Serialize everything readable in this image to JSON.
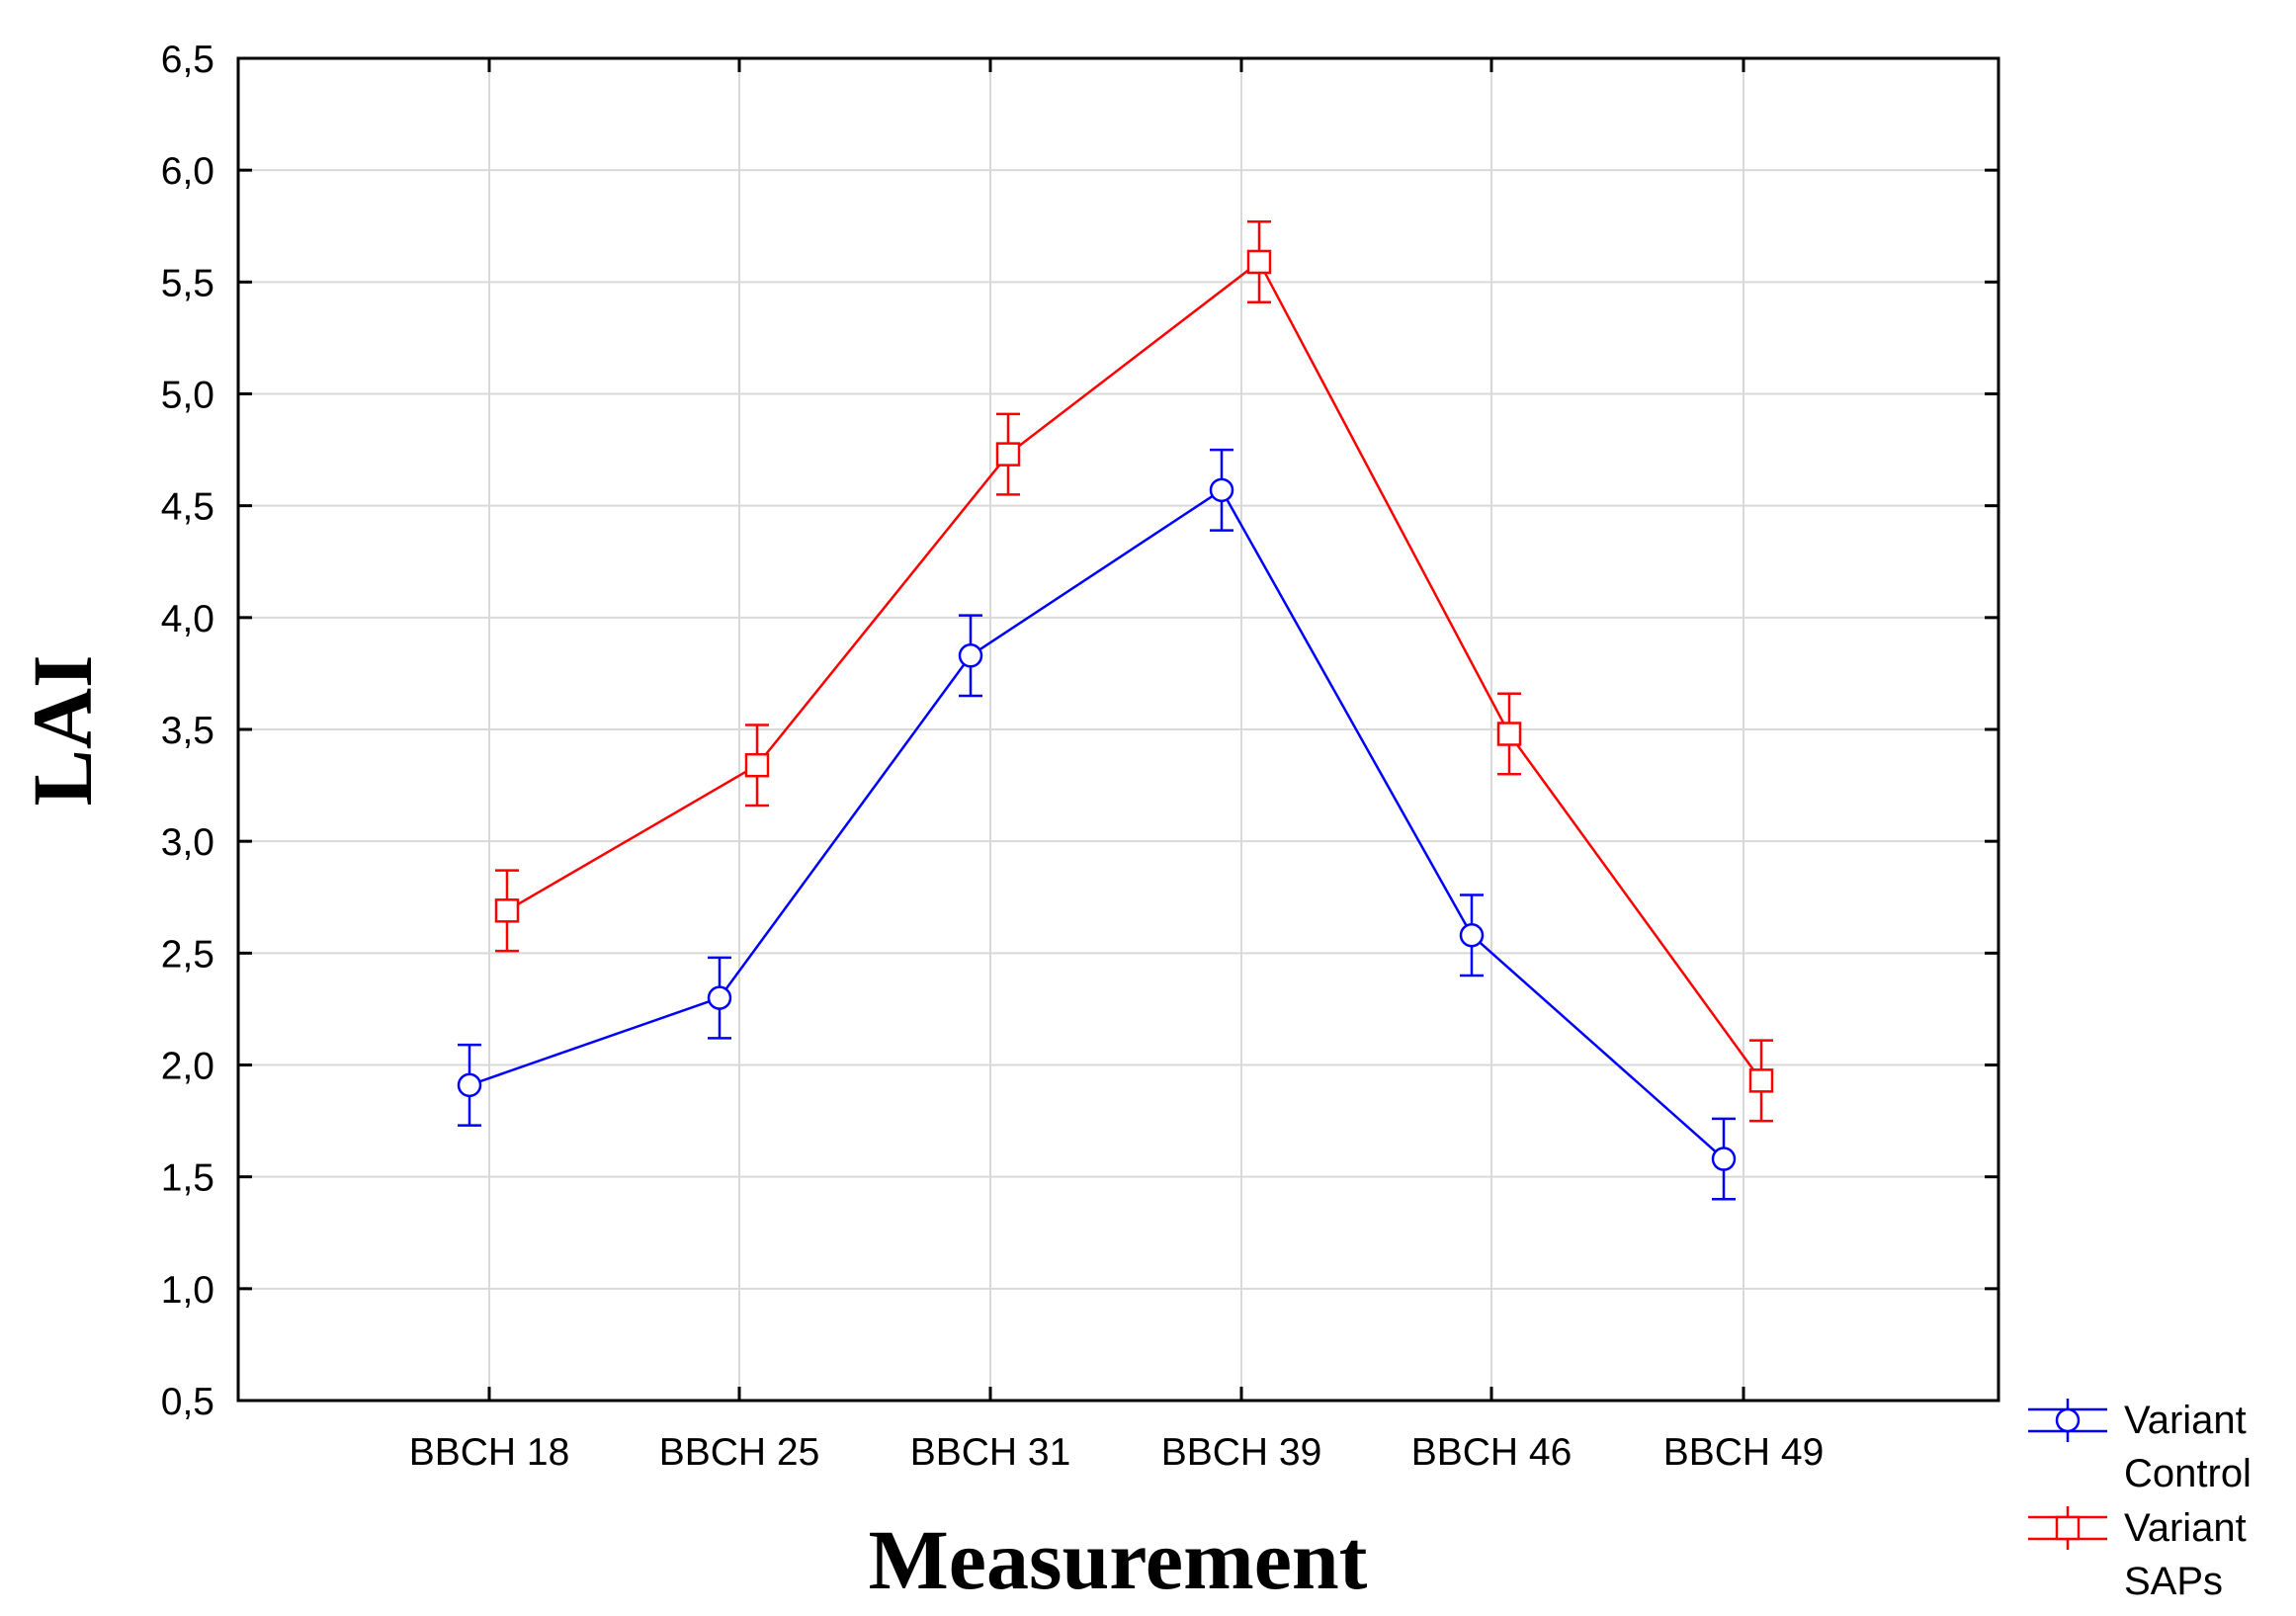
{
  "chart_data": {
    "type": "line",
    "xlabel": "Measurement",
    "ylabel": "LAI",
    "categories": [
      "BBCH 18",
      "BBCH 25",
      "BBCH 31",
      "BBCH 39",
      "BBCH 46",
      "BBCH 49"
    ],
    "ylim": [
      0.5,
      6.5
    ],
    "yticks": [
      "0,5",
      "1,0",
      "1,5",
      "2,0",
      "2,5",
      "3,0",
      "3,5",
      "4,0",
      "4,5",
      "5,0",
      "5,5",
      "6,0",
      "6,5"
    ],
    "ytick_values": [
      0.5,
      1.0,
      1.5,
      2.0,
      2.5,
      3.0,
      3.5,
      4.0,
      4.5,
      5.0,
      5.5,
      6.0,
      6.5
    ],
    "grid": true,
    "legend_position": "bottom-right, outside plot",
    "series": [
      {
        "name_lines": [
          "Variant",
          "Control"
        ],
        "color": "#0000ff",
        "marker": "circle",
        "values": [
          1.91,
          2.3,
          3.83,
          4.57,
          2.58,
          1.58
        ],
        "error": [
          0.18,
          0.18,
          0.18,
          0.18,
          0.18,
          0.18
        ]
      },
      {
        "name_lines": [
          "Variant",
          "SAPs"
        ],
        "color": "#ff0000",
        "marker": "square",
        "values": [
          2.69,
          3.34,
          4.73,
          5.59,
          3.48,
          1.93
        ],
        "error": [
          0.18,
          0.18,
          0.18,
          0.18,
          0.18,
          0.18
        ]
      }
    ]
  }
}
